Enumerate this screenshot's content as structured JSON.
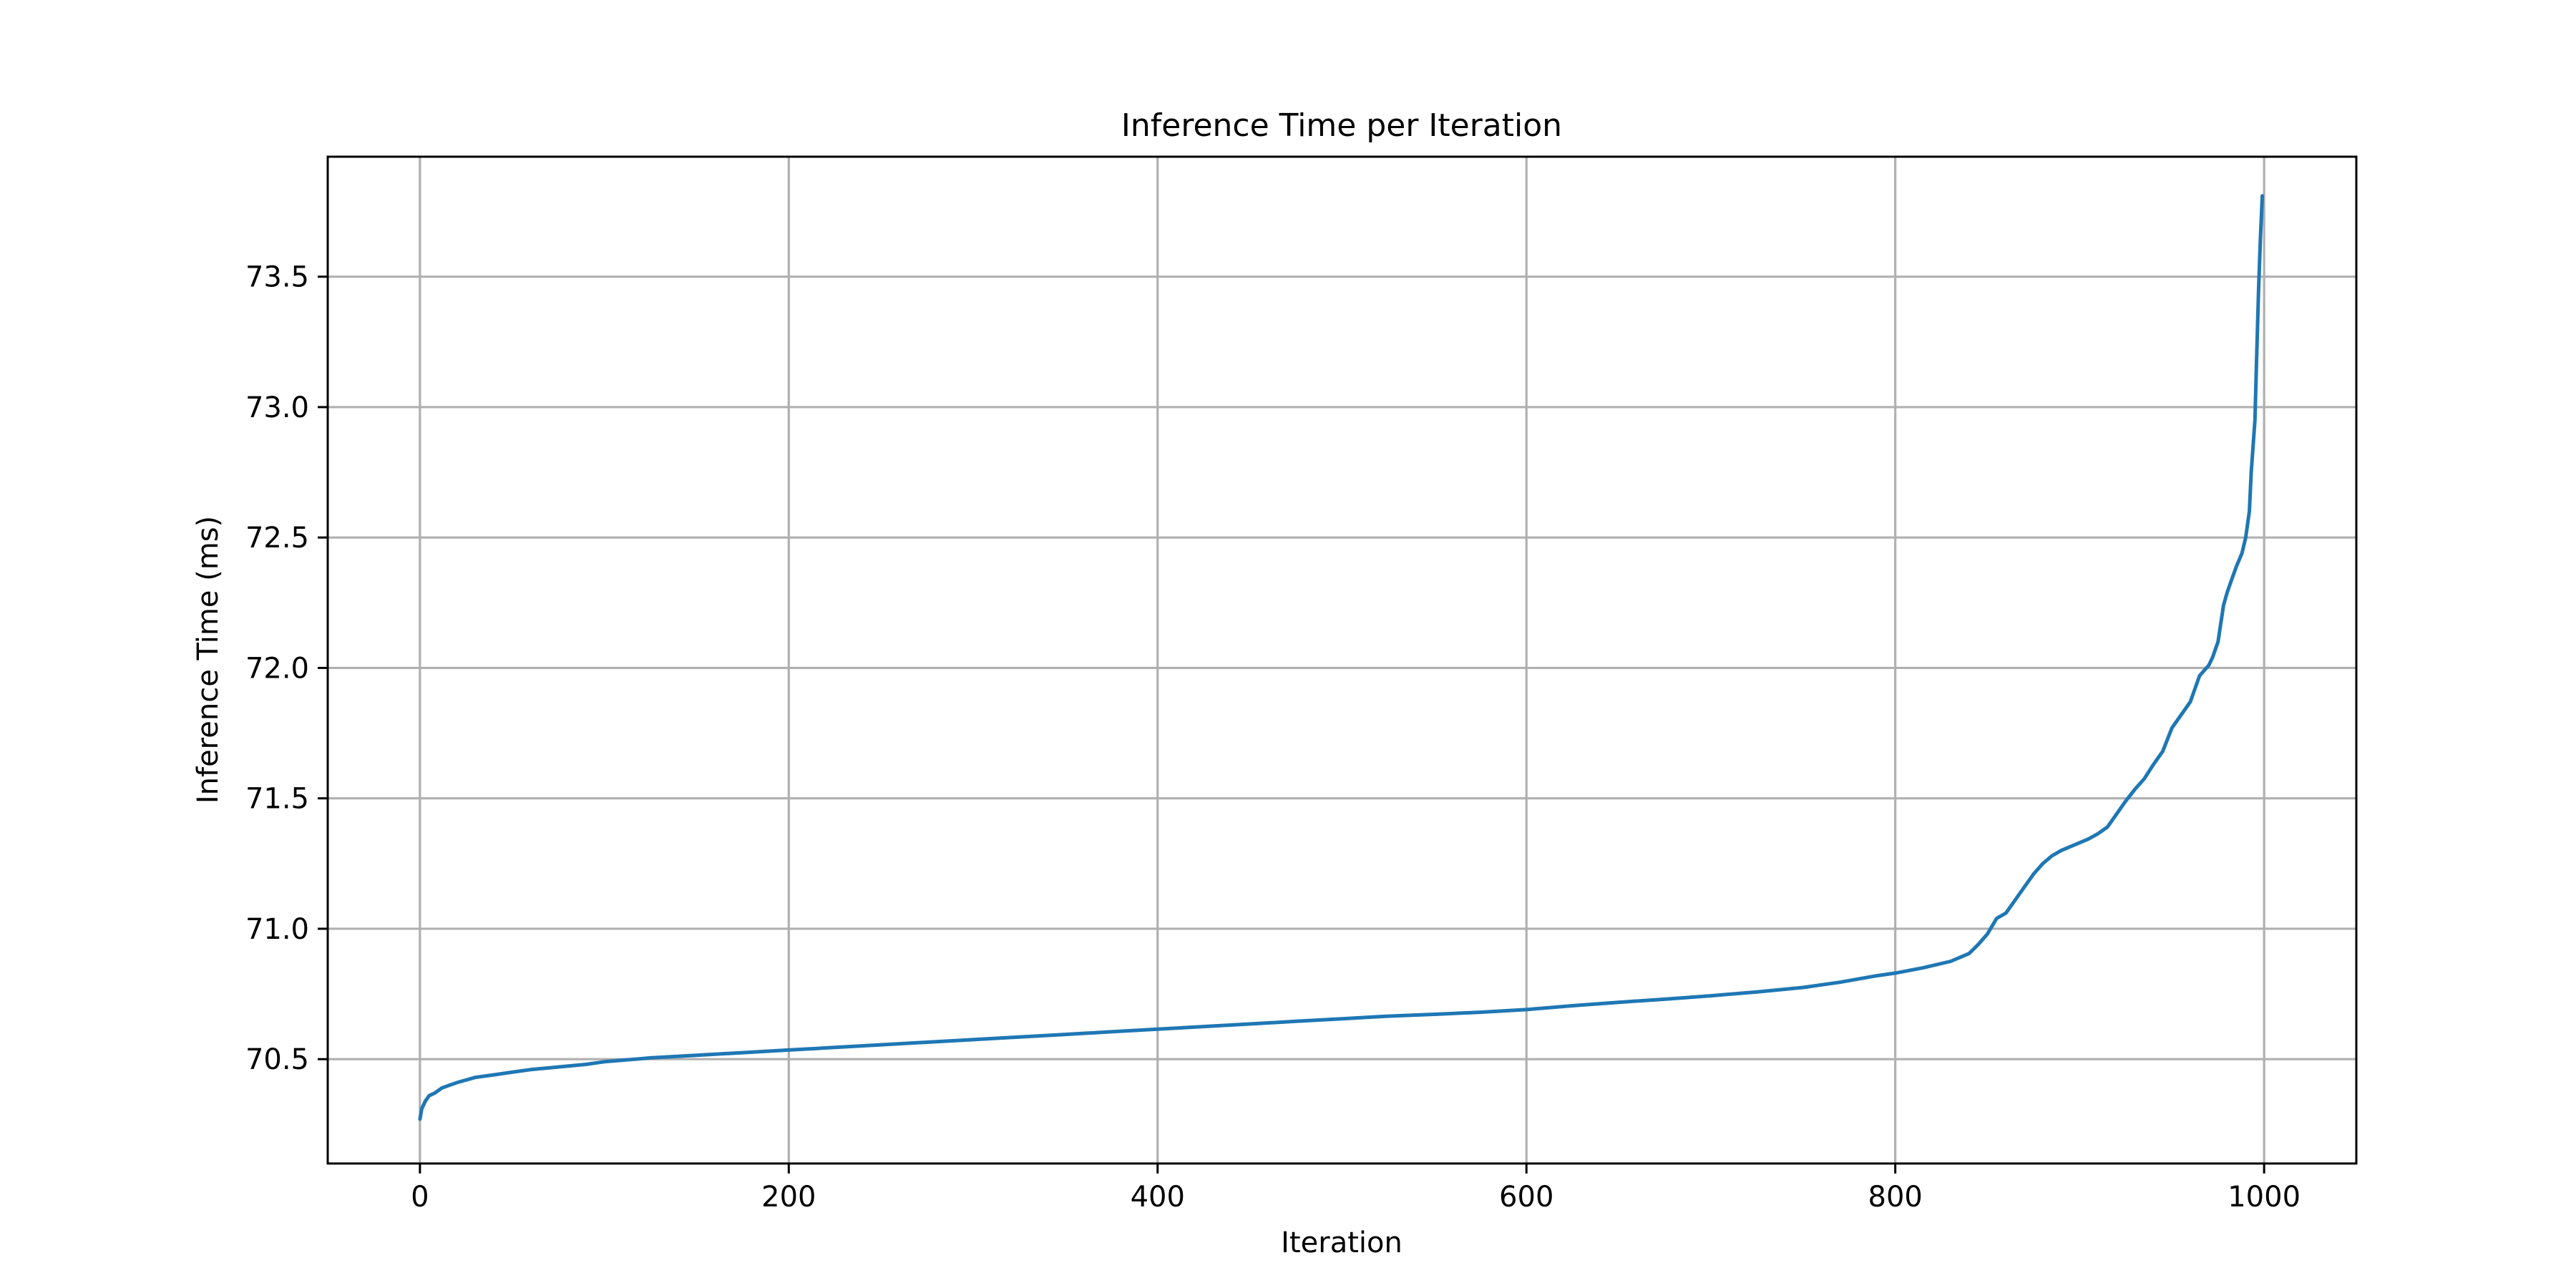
{
  "chart_data": {
    "type": "line",
    "title": "Inference Time per Iteration",
    "xlabel": "Iteration",
    "ylabel": "Inference Time (ms)",
    "xlim": [
      -50,
      1050
    ],
    "ylim": [
      70.1,
      73.96
    ],
    "xticks": [
      0,
      200,
      400,
      600,
      800,
      1000
    ],
    "xtick_labels": [
      "0",
      "200",
      "400",
      "600",
      "800",
      "1000"
    ],
    "yticks": [
      70.5,
      71.0,
      71.5,
      72.0,
      72.5,
      73.0,
      73.5
    ],
    "ytick_labels": [
      "70.5",
      "71.0",
      "71.5",
      "72.0",
      "72.5",
      "73.0",
      "73.5"
    ],
    "grid": true,
    "legend": "none",
    "series": [
      {
        "color": "#1f77b4",
        "x": [
          0,
          1,
          3,
          5,
          8,
          12,
          16,
          20,
          30,
          40,
          50,
          60,
          75,
          90,
          100,
          125,
          150,
          175,
          200,
          225,
          250,
          275,
          300,
          325,
          350,
          375,
          400,
          425,
          450,
          475,
          500,
          525,
          550,
          575,
          600,
          625,
          650,
          675,
          700,
          725,
          750,
          770,
          790,
          800,
          815,
          830,
          840,
          845,
          850,
          855,
          860,
          865,
          870,
          875,
          880,
          885,
          890,
          895,
          900,
          905,
          910,
          915,
          920,
          925,
          930,
          935,
          940,
          945,
          950,
          955,
          960,
          965,
          970,
          972,
          975,
          978,
          980,
          982,
          985,
          988,
          990,
          992,
          993,
          995,
          996,
          997,
          998,
          999
        ],
        "y": [
          70.27,
          70.31,
          70.34,
          70.36,
          70.37,
          70.39,
          70.4,
          70.41,
          70.43,
          70.44,
          70.45,
          70.46,
          70.47,
          70.48,
          70.49,
          70.505,
          70.515,
          70.525,
          70.535,
          70.545,
          70.555,
          70.565,
          70.575,
          70.585,
          70.595,
          70.605,
          70.615,
          70.625,
          70.635,
          70.645,
          70.655,
          70.665,
          70.672,
          70.68,
          70.69,
          70.705,
          70.718,
          70.73,
          70.743,
          70.758,
          70.775,
          70.795,
          70.82,
          70.83,
          70.85,
          70.875,
          70.905,
          70.94,
          70.98,
          71.04,
          71.06,
          71.11,
          71.16,
          71.21,
          71.25,
          71.28,
          71.3,
          71.315,
          71.33,
          71.345,
          71.365,
          71.39,
          71.44,
          71.49,
          71.535,
          71.575,
          71.63,
          71.68,
          71.77,
          71.82,
          71.87,
          71.97,
          72.01,
          72.04,
          72.1,
          72.24,
          72.29,
          72.33,
          72.39,
          72.44,
          72.5,
          72.6,
          72.75,
          72.95,
          73.2,
          73.45,
          73.65,
          73.81
        ]
      }
    ]
  }
}
